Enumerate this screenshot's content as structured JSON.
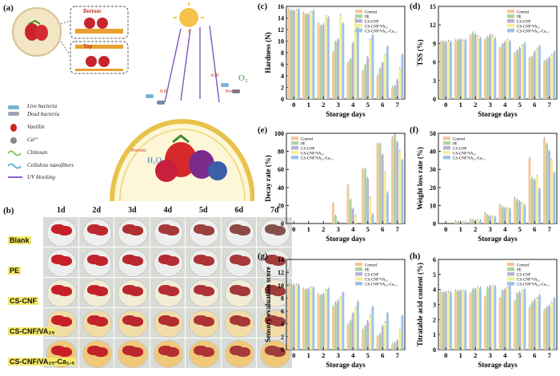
{
  "panel_letters": {
    "a": "(a)",
    "b": "(b)",
    "c": "(c)",
    "d": "(d)",
    "e": "(e)",
    "f": "(f)",
    "g": "(g)",
    "h": "(h)"
  },
  "panel_a": {
    "bottom_label": "Bottom",
    "top_label": "Top",
    "legend": [
      "Live bacteria",
      "Dead bacteria",
      "Vanillin",
      "Ca²⁺",
      "Chitosan",
      "Cellulose nanofibers",
      "UV blocking"
    ],
    "molecule_labels": [
      "O₂",
      "H₂O"
    ],
    "arrow_labels": [
      "Kill",
      "Kill",
      "Prevent",
      "Prevent"
    ]
  },
  "panel_b": {
    "days": [
      "1d",
      "2d",
      "3d",
      "4d",
      "5d",
      "6d",
      "7d"
    ],
    "rows": [
      "Blank",
      "PE",
      "CS-CNF",
      "CS-CNF/VA₂₅",
      "CS-CNF/VA₂₅-Ca₁.₅"
    ]
  },
  "colors": {
    "Control": "#f4c89a",
    "PE": "#a8d5a0",
    "CS-CNF": "#b9b2d6",
    "CS-CNF/VA25": "#f5ef9a",
    "CS-CNF/VA25-Ca1.5": "#9cc2e8"
  },
  "chart_data": [
    {
      "panel": "c",
      "type": "bar",
      "xlabel": "Storage days",
      "ylabel": "Hardness (N)",
      "ylim": [
        0,
        16
      ],
      "yticks": [
        0,
        2,
        4,
        6,
        8,
        10,
        12,
        14,
        16
      ],
      "categories": [
        "0",
        "1",
        "2",
        "3",
        "4",
        "5",
        "6",
        "7"
      ],
      "legend_position": "top-right",
      "series": [
        {
          "name": "Control",
          "values": [
            15.4,
            14.8,
            13.0,
            8.0,
            6.2,
            4.8,
            4.0,
            2.0
          ]
        },
        {
          "name": "PE",
          "values": [
            15.3,
            14.6,
            12.6,
            9.8,
            6.8,
            5.8,
            5.2,
            2.2
          ]
        },
        {
          "name": "CS-CNF",
          "values": [
            15.2,
            14.6,
            12.8,
            10.2,
            9.6,
            7.2,
            6.2,
            3.2
          ]
        },
        {
          "name": "CS-CNF/VA25",
          "values": [
            15.3,
            15.0,
            14.2,
            14.4,
            13.8,
            10.2,
            7.6,
            5.2
          ]
        },
        {
          "name": "CS-CNF/VA25-Ca1.5",
          "values": [
            15.4,
            15.2,
            14.0,
            13.0,
            12.6,
            11.0,
            9.0,
            7.6
          ]
        }
      ]
    },
    {
      "panel": "d",
      "type": "bar",
      "xlabel": "Storage days",
      "ylabel": "TSS (%)",
      "ylim": [
        0,
        15
      ],
      "yticks": [
        0,
        3,
        6,
        9,
        12,
        15
      ],
      "categories": [
        "0",
        "1",
        "2",
        "3",
        "4",
        "5",
        "6",
        "7"
      ],
      "legend_position": "top-right",
      "series": [
        {
          "name": "Control",
          "values": [
            9.2,
            9.4,
            10.2,
            9.6,
            8.2,
            7.4,
            6.6,
            6.0
          ]
        },
        {
          "name": "PE",
          "values": [
            9.3,
            9.5,
            10.7,
            10.0,
            8.8,
            7.8,
            6.8,
            6.3
          ]
        },
        {
          "name": "CS-CNF",
          "values": [
            9.2,
            9.6,
            10.4,
            10.3,
            9.2,
            8.2,
            7.6,
            6.6
          ]
        },
        {
          "name": "CS-CNF/VA25",
          "values": [
            9.3,
            9.4,
            10.1,
            10.2,
            9.5,
            8.6,
            8.0,
            7.0
          ]
        },
        {
          "name": "CS-CNF/VA25-Ca1.5",
          "values": [
            9.2,
            9.5,
            9.8,
            9.8,
            9.3,
            9.0,
            8.5,
            7.6
          ]
        }
      ]
    },
    {
      "panel": "e",
      "type": "bar",
      "xlabel": "Storage days",
      "ylabel": "Decay rate (%)",
      "ylim": [
        0,
        100
      ],
      "yticks": [
        0,
        20,
        40,
        60,
        80,
        100
      ],
      "categories": [
        "0",
        "1",
        "2",
        "3",
        "4",
        "5",
        "6",
        "7"
      ],
      "legend_position": "top-left",
      "series": [
        {
          "name": "Control",
          "values": [
            0,
            0,
            0,
            22,
            42,
            60,
            88,
            95
          ]
        },
        {
          "name": "PE",
          "values": [
            0,
            0,
            0,
            8,
            26,
            60,
            88,
            98
          ]
        },
        {
          "name": "CS-CNF",
          "values": [
            0,
            0,
            0,
            0,
            16,
            50,
            76,
            90
          ]
        },
        {
          "name": "CS-CNF/VA25",
          "values": [
            0,
            0,
            0,
            0,
            8,
            28,
            56,
            80
          ]
        },
        {
          "name": "CS-CNF/VA25-Ca1.5",
          "values": [
            0,
            0,
            0,
            0,
            0,
            10,
            34,
            70
          ]
        }
      ]
    },
    {
      "panel": "f",
      "type": "bar",
      "xlabel": "Storage days",
      "ylabel": "Weight loss rate (%)",
      "ylim": [
        0,
        50
      ],
      "yticks": [
        0,
        10,
        20,
        30,
        40,
        50
      ],
      "categories": [
        "0",
        "1",
        "2",
        "3",
        "4",
        "5",
        "6",
        "7"
      ],
      "legend_position": "top-left",
      "series": [
        {
          "name": "Control",
          "values": [
            0,
            1.0,
            2.0,
            5.5,
            10.0,
            14.0,
            36.0,
            47.0
          ]
        },
        {
          "name": "PE",
          "values": [
            0,
            0.8,
            1.8,
            4.5,
            9.0,
            13.0,
            25.0,
            44.0
          ]
        },
        {
          "name": "CS-CNF",
          "values": [
            0,
            0.8,
            1.6,
            4.0,
            8.5,
            12.0,
            24.0,
            40.0
          ]
        },
        {
          "name": "CS-CNF/VA25",
          "values": [
            0,
            0.6,
            1.5,
            3.5,
            8.0,
            11.0,
            26.0,
            35.0
          ]
        },
        {
          "name": "CS-CNF/VA25-Ca1.5",
          "values": [
            0,
            0.6,
            1.4,
            3.5,
            8.0,
            10.0,
            19.0,
            28.0
          ]
        }
      ]
    },
    {
      "panel": "g",
      "type": "bar",
      "xlabel": "Storage days",
      "ylabel": "Sensory evaluation score",
      "ylim": [
        0,
        14
      ],
      "yticks": [
        0,
        2,
        4,
        6,
        8,
        10,
        12,
        14
      ],
      "categories": [
        "0",
        "1",
        "2",
        "3",
        "4",
        "5",
        "6",
        "7"
      ],
      "legend_position": "top-right",
      "series": [
        {
          "name": "Control",
          "values": [
            10,
            9.4,
            8.6,
            6.6,
            3.8,
            3.0,
            2.0,
            0.8
          ]
        },
        {
          "name": "PE",
          "values": [
            10,
            9.3,
            8.4,
            7.2,
            4.4,
            3.6,
            2.4,
            1.0
          ]
        },
        {
          "name": "CS-CNF",
          "values": [
            10,
            9.4,
            8.6,
            7.6,
            5.6,
            4.4,
            3.6,
            1.4
          ]
        },
        {
          "name": "CS-CNF/VA25",
          "values": [
            10,
            9.6,
            9.2,
            8.0,
            6.4,
            5.2,
            4.2,
            3.0
          ]
        },
        {
          "name": "CS-CNF/VA25-Ca1.5",
          "values": [
            10,
            9.6,
            9.4,
            8.8,
            7.4,
            6.6,
            5.6,
            5.2
          ]
        }
      ]
    },
    {
      "panel": "h",
      "type": "bar",
      "xlabel": "Storage days",
      "ylabel": "Titratable acid content (%)",
      "ylim": [
        0,
        6
      ],
      "yticks": [
        0,
        1,
        2,
        3,
        4,
        5,
        6
      ],
      "categories": [
        "0",
        "1",
        "2",
        "3",
        "4",
        "5",
        "6",
        "7"
      ],
      "legend_position": "top-right",
      "series": [
        {
          "name": "Control",
          "values": [
            3.8,
            3.9,
            3.7,
            3.5,
            3.4,
            3.2,
            2.8,
            2.6
          ]
        },
        {
          "name": "PE",
          "values": [
            3.8,
            3.9,
            4.0,
            4.1,
            3.9,
            3.7,
            3.1,
            2.8
          ]
        },
        {
          "name": "CS-CNF",
          "values": [
            3.8,
            3.9,
            4.0,
            4.2,
            4.0,
            3.8,
            3.3,
            2.9
          ]
        },
        {
          "name": "CS-CNF/VA25",
          "values": [
            3.8,
            3.9,
            4.1,
            4.2,
            4.1,
            3.9,
            3.4,
            3.1
          ]
        },
        {
          "name": "CS-CNF/VA25-Ca1.5",
          "values": [
            3.8,
            3.9,
            4.1,
            4.2,
            4.3,
            4.0,
            3.6,
            3.4
          ]
        }
      ]
    }
  ]
}
